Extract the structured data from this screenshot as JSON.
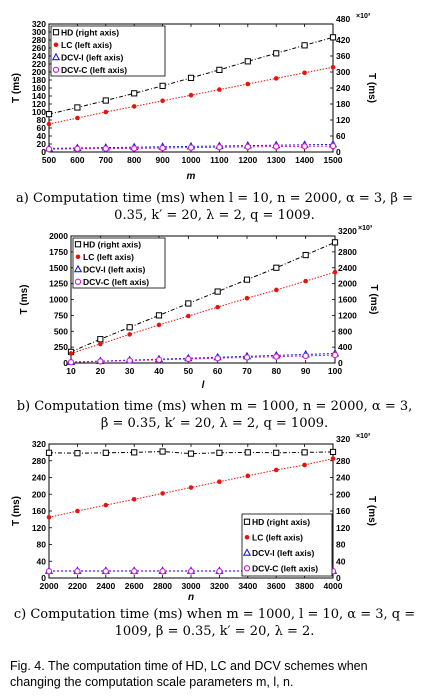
{
  "charts": [
    {
      "chart_data": {
        "type": "line",
        "x": [
          500,
          600,
          700,
          800,
          900,
          1000,
          1100,
          1200,
          1300,
          1400,
          1500
        ],
        "xticks": [
          "500",
          "600",
          "700",
          "800",
          "900",
          "1000",
          "1100",
          "1200",
          "1300",
          "1400",
          "1500"
        ],
        "xlim": [
          500,
          1500
        ],
        "xlabel": "m",
        "ylabel_left": "T (ms)",
        "ylim_left": [
          0,
          320
        ],
        "yticks_left": [
          "0",
          "20",
          "40",
          "60",
          "80",
          "100",
          "120",
          "140",
          "160",
          "180",
          "200",
          "220",
          "240",
          "260",
          "280",
          "300",
          "320"
        ],
        "ylabel_right": "T (ms)",
        "ylim_right": [
          0,
          480
        ],
        "yticks_right": [
          "0",
          "60",
          "120",
          "180",
          "240",
          "300",
          "360",
          "420"
        ],
        "yticks_right_values": [
          0,
          60,
          120,
          180,
          240,
          300,
          360,
          420
        ],
        "right_exponent": "×10³",
        "right_top_label": "480",
        "legend_position": "top-left",
        "series": [
          {
            "name": "HD (right axis)",
            "axis": "right",
            "color": "#000000",
            "marker": "square",
            "values": [
              142,
              167,
              193,
              220,
              248,
              278,
              308,
              340,
              370,
              400,
              430
            ]
          },
          {
            "name": "LC (left axis)",
            "axis": "left",
            "color": "#e8130f",
            "marker": "dot",
            "values": [
              70,
              85,
              100,
              114,
              128,
              142,
              156,
              170,
              184,
              198,
              212
            ]
          },
          {
            "name": "DCV-I (left axis)",
            "axis": "left",
            "color": "#1a1ad8",
            "marker": "triangle",
            "values": [
              9,
              10,
              11,
              12,
              13,
              14,
              15,
              16,
              17,
              18,
              19
            ]
          },
          {
            "name": "DCV-C (left axis)",
            "axis": "left",
            "color": "#d11bd1",
            "marker": "circle",
            "values": [
              7,
              8,
              8.5,
              9,
              10,
              11,
              12,
              13,
              13.5,
              14,
              15
            ]
          }
        ]
      },
      "caption": "a) Computation time (ms) when l = 10, n = 2000, α = 3, β = 0.35, k′ = 20, λ = 2, q = 1009."
    },
    {
      "chart_data": {
        "type": "line",
        "x": [
          10,
          20,
          30,
          40,
          50,
          60,
          70,
          80,
          90,
          100
        ],
        "xticks": [
          "10",
          "20",
          "30",
          "40",
          "50",
          "60",
          "70",
          "80",
          "90",
          "100"
        ],
        "xlim": [
          10,
          100
        ],
        "xlabel": "l",
        "ylabel_left": "T (ms)",
        "ylim_left": [
          0,
          2000
        ],
        "yticks_left": [
          "0",
          "250",
          "500",
          "750",
          "1000",
          "1250",
          "1500",
          "1750",
          "2000"
        ],
        "ylabel_right": "T (ms)",
        "ylim_right": [
          0,
          3200
        ],
        "yticks_right": [
          "0",
          "400",
          "800",
          "1200",
          "1600",
          "2000",
          "2400",
          "2800"
        ],
        "yticks_right_values": [
          0,
          400,
          800,
          1200,
          1600,
          2000,
          2400,
          2800
        ],
        "right_exponent": "×10³",
        "right_top_label": "3200",
        "legend_position": "top-left",
        "series": [
          {
            "name": "HD (right axis)",
            "axis": "right",
            "color": "#000000",
            "marker": "square",
            "values": [
              280,
              600,
              900,
              1200,
              1500,
              1800,
              2100,
              2400,
              2720,
              3040
            ]
          },
          {
            "name": "LC (left axis)",
            "axis": "left",
            "color": "#e8130f",
            "marker": "dot",
            "values": [
              150,
              300,
              450,
              600,
              740,
              880,
              1020,
              1150,
              1290,
              1430
            ]
          },
          {
            "name": "DCV-I (left axis)",
            "axis": "left",
            "color": "#1a1ad8",
            "marker": "triangle",
            "values": [
              15,
              30,
              45,
              60,
              75,
              90,
              105,
              120,
              135,
              150
            ]
          },
          {
            "name": "DCV-C (left axis)",
            "axis": "left",
            "color": "#d11bd1",
            "marker": "circle",
            "values": [
              12,
              25,
              38,
              50,
              62,
              75,
              88,
              100,
              112,
              125
            ]
          }
        ]
      },
      "caption": "b) Computation time (ms) when m = 1000, n = 2000, α = 3, β = 0.35, k′ = 20, λ = 2, q = 1009."
    },
    {
      "chart_data": {
        "type": "line",
        "x": [
          2000,
          2200,
          2400,
          2600,
          2800,
          3000,
          3200,
          3400,
          3600,
          3800,
          4000
        ],
        "xticks": [
          "2000",
          "2200",
          "2400",
          "2600",
          "2800",
          "3000",
          "3200",
          "3400",
          "3600",
          "3800",
          "4000"
        ],
        "xlim": [
          2000,
          4000
        ],
        "xlabel": "n",
        "ylabel_left": "T (ms)",
        "ylim_left": [
          0,
          320
        ],
        "yticks_left": [
          "0",
          "40",
          "80",
          "120",
          "160",
          "200",
          "240",
          "280",
          "320"
        ],
        "ylabel_right": "T (ms)",
        "ylim_right": [
          0,
          320
        ],
        "yticks_right": [
          "0",
          "40",
          "80",
          "120",
          "160",
          "200",
          "240",
          "280"
        ],
        "yticks_right_values": [
          0,
          40,
          80,
          120,
          160,
          200,
          240,
          280
        ],
        "right_exponent": "×10³",
        "right_top_label": "320",
        "legend_position": "bottom-right",
        "series": [
          {
            "name": "HD (right axis)",
            "axis": "right",
            "color": "#000000",
            "marker": "square",
            "values": [
              299,
              298,
              299,
              300,
              302,
              297,
              299,
              300,
              299,
              300,
              301
            ]
          },
          {
            "name": "LC (left axis)",
            "axis": "left",
            "color": "#e8130f",
            "marker": "dot",
            "values": [
              145,
              160,
              174,
              188,
              202,
              216,
              230,
              244,
              258,
              270,
              285
            ]
          },
          {
            "name": "DCV-I (left axis)",
            "axis": "left",
            "color": "#1a1ad8",
            "marker": "triangle",
            "values": [
              17,
              17,
              17,
              17,
              17,
              17,
              17,
              17,
              17,
              17,
              17
            ]
          },
          {
            "name": "DCV-C (left axis)",
            "axis": "left",
            "color": "#d11bd1",
            "marker": "circle",
            "values": [
              16,
              16,
              16,
              16,
              16,
              16,
              16,
              16,
              16,
              16,
              16
            ]
          }
        ]
      },
      "caption": "c) Computation time (ms) when m = 1000, l = 10, α = 3, q = 1009, β = 0.35, k′ = 20, λ = 2."
    }
  ],
  "figure_caption": "Fig. 4. The computation time of HD, LC and DCV schemes when changing the computation scale parameters m, l, n."
}
